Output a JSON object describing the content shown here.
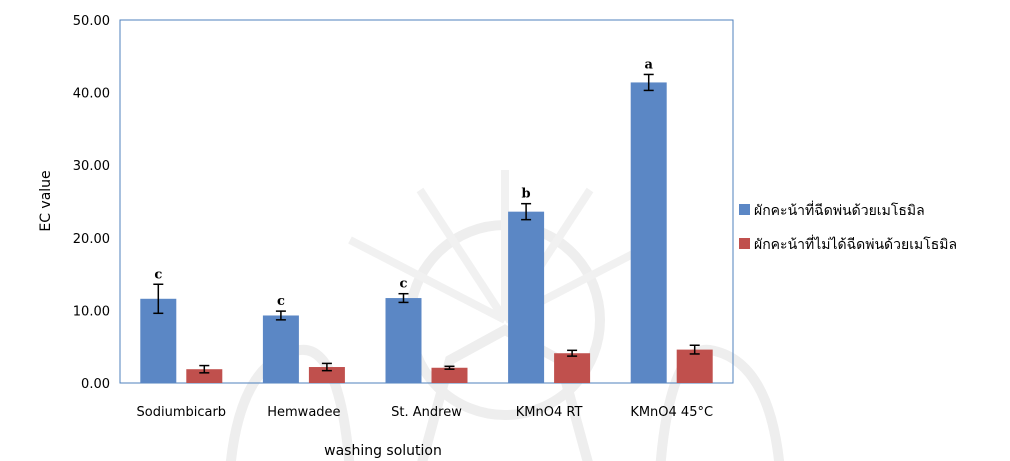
{
  "chart_data": {
    "type": "bar",
    "categories": [
      "Sodiumbicarb",
      "Hemwadee",
      "St. Andrew",
      "KMnO4 RT",
      "KMnO4 45°C"
    ],
    "series": [
      {
        "name": "ผักคะน้าที่ฉีดพ่นด้วยเมโธมิล",
        "color": "#5b87c5",
        "values": [
          11.6,
          9.3,
          11.7,
          23.6,
          41.4
        ],
        "error": [
          2.0,
          0.6,
          0.6,
          1.1,
          1.1
        ],
        "significance": [
          "c",
          "c",
          "c",
          "b",
          "a"
        ]
      },
      {
        "name": "ผักคะน้าที่ไม่ได้ฉีดพ่นด้วยเมโธมิล",
        "color": "#c0504d",
        "values": [
          1.9,
          2.2,
          2.1,
          4.1,
          4.6
        ],
        "error": [
          0.5,
          0.5,
          0.2,
          0.4,
          0.6
        ],
        "significance": [
          "",
          "",
          "",
          "",
          ""
        ]
      }
    ],
    "ylabel": "EC value",
    "xlabel": "washing solution",
    "ylim": [
      0,
      50
    ],
    "yticks": [
      "0.00",
      "10.00",
      "20.00",
      "30.00",
      "40.00",
      "50.00"
    ],
    "grid": false,
    "legend_position": "right"
  }
}
